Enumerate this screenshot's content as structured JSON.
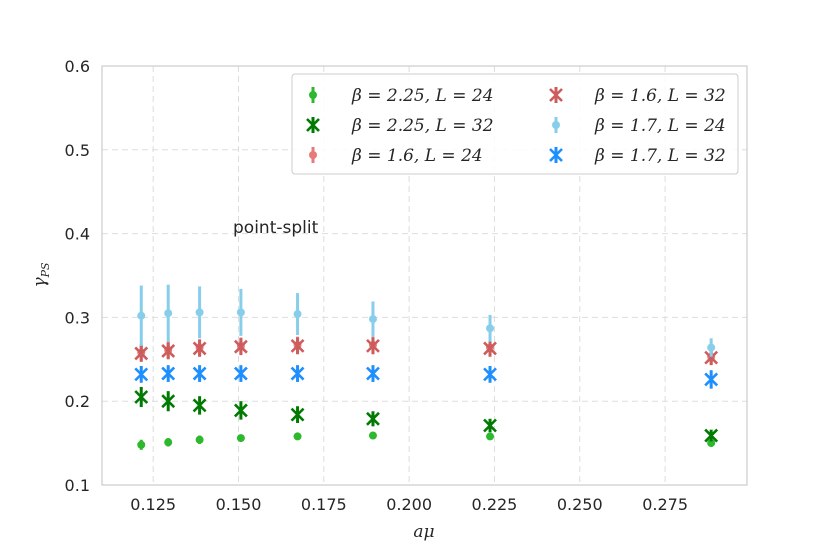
{
  "chart_data": {
    "type": "scatter",
    "title": "",
    "xlabel": "aμ",
    "ylabel": "γ_PS",
    "ylabel_main": "γ",
    "ylabel_sub": "PS",
    "xlim": [
      0.11,
      0.299
    ],
    "ylim": [
      0.1,
      0.6
    ],
    "xticks": [
      0.125,
      0.15,
      0.175,
      0.2,
      0.225,
      0.25,
      0.275
    ],
    "xtick_labels": [
      "0.125",
      "0.150",
      "0.175",
      "0.200",
      "0.225",
      "0.250",
      "0.275"
    ],
    "yticks": [
      0.1,
      0.2,
      0.3,
      0.4,
      0.5,
      0.6
    ],
    "ytick_labels": [
      "0.1",
      "0.2",
      "0.3",
      "0.4",
      "0.5",
      "0.6"
    ],
    "grid": true,
    "legend_position": "top-right",
    "annotation": "point-split",
    "series": [
      {
        "name": "β = 2.25, L = 24",
        "color": "#2db82d",
        "marker": "circle",
        "x": [
          0.1215,
          0.1294,
          0.1386,
          0.1507,
          0.1673,
          0.1894,
          0.2237,
          0.2885
        ],
        "y": [
          0.148,
          0.151,
          0.154,
          0.156,
          0.158,
          0.159,
          0.158,
          0.15
        ],
        "err": [
          0.006,
          0.005,
          0.005,
          0.004,
          0.004,
          0.003,
          0.003,
          0.003
        ]
      },
      {
        "name": "β = 2.25, L = 32",
        "color": "#007a00",
        "marker": "x",
        "x": [
          0.1215,
          0.1294,
          0.1386,
          0.1507,
          0.1673,
          0.1894,
          0.2237,
          0.2885
        ],
        "y": [
          0.205,
          0.2,
          0.195,
          0.189,
          0.184,
          0.179,
          0.171,
          0.159
        ],
        "err": [
          0.012,
          0.012,
          0.011,
          0.011,
          0.01,
          0.009,
          0.008,
          0.007
        ]
      },
      {
        "name": "β = 1.6, L = 24",
        "color": "#e87a7a",
        "marker": "circle",
        "x": [
          0.1215,
          0.1294,
          0.1386,
          0.1507,
          0.1673,
          0.1894,
          0.2237,
          0.2885
        ],
        "y": [
          0.258,
          0.261,
          0.264,
          0.266,
          0.267,
          0.267,
          0.264,
          0.253
        ],
        "err": [
          0.01,
          0.01,
          0.01,
          0.01,
          0.01,
          0.01,
          0.009,
          0.009
        ]
      },
      {
        "name": "β = 1.6, L = 32",
        "color": "#cd5c5c",
        "marker": "x",
        "x": [
          0.1215,
          0.1294,
          0.1386,
          0.1507,
          0.1673,
          0.1894,
          0.2237,
          0.2885
        ],
        "y": [
          0.257,
          0.26,
          0.263,
          0.265,
          0.266,
          0.266,
          0.263,
          0.252
        ],
        "err": [
          0.01,
          0.01,
          0.01,
          0.01,
          0.01,
          0.01,
          0.01,
          0.009
        ]
      },
      {
        "name": "β = 1.7, L = 24",
        "color": "#87ceeb",
        "marker": "circle",
        "x": [
          0.1215,
          0.1294,
          0.1386,
          0.1507,
          0.1673,
          0.1894,
          0.2237,
          0.2885
        ],
        "y": [
          0.302,
          0.305,
          0.306,
          0.306,
          0.304,
          0.298,
          0.287,
          0.264
        ],
        "err": [
          0.036,
          0.034,
          0.031,
          0.028,
          0.025,
          0.021,
          0.016,
          0.011
        ]
      },
      {
        "name": "β = 1.7, L = 32",
        "color": "#1e8fff",
        "marker": "x",
        "x": [
          0.1215,
          0.1294,
          0.1386,
          0.1507,
          0.1673,
          0.1894,
          0.2237,
          0.2885
        ],
        "y": [
          0.232,
          0.233,
          0.233,
          0.233,
          0.233,
          0.233,
          0.232,
          0.226
        ],
        "err": [
          0.01,
          0.01,
          0.01,
          0.01,
          0.01,
          0.01,
          0.01,
          0.011
        ]
      }
    ],
    "legend_order": [
      0,
      3,
      1,
      4,
      2,
      5
    ]
  }
}
